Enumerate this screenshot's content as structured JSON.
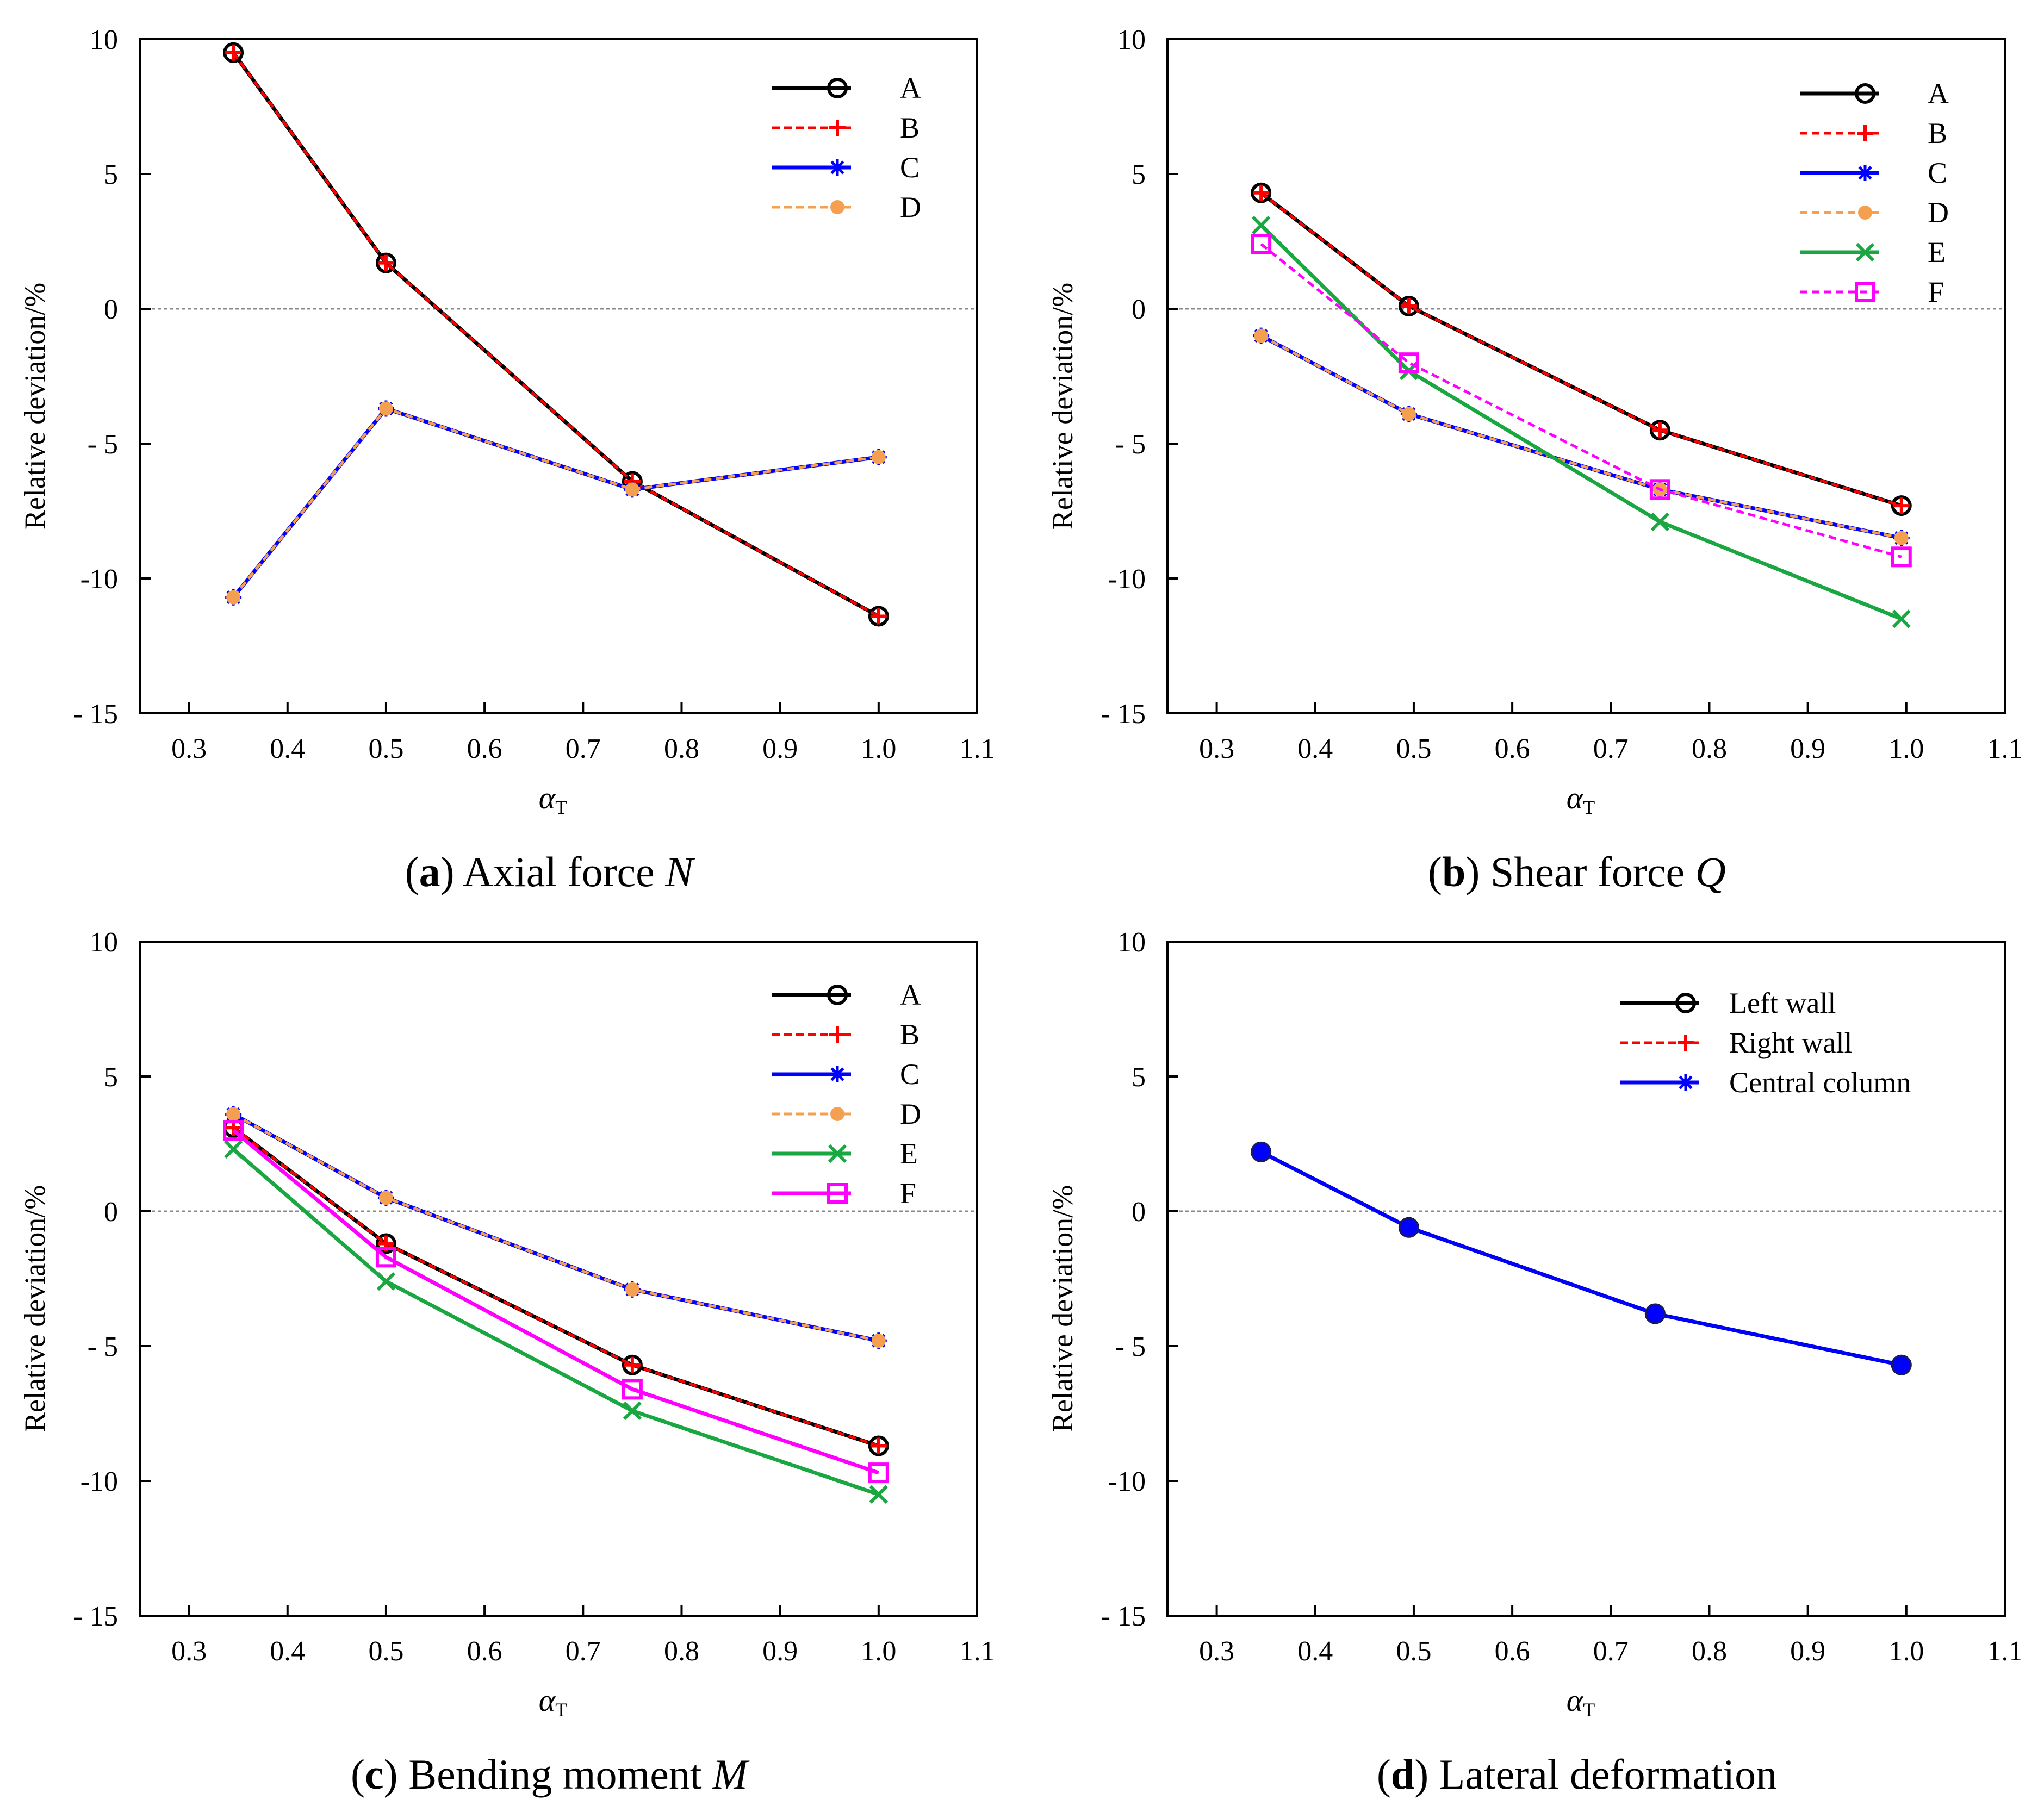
{
  "colors": {
    "A": "#000000",
    "B": "#ff0000",
    "C": "#0000ff",
    "D": "#f5a050",
    "E": "#1aa640",
    "F": "#ff00ff",
    "zero_line": "#8a8a8a"
  },
  "chart_data": [
    {
      "id": "a",
      "type": "line",
      "caption": {
        "letter": "a",
        "text": "Axial force",
        "symbol": "N"
      },
      "ylabel": "Relative deviation/%",
      "xlabel": {
        "symbol": "α",
        "subscript": "T"
      },
      "xlim": [
        0.25,
        1.1
      ],
      "ylim": [
        -15,
        10
      ],
      "xticks": [
        "0.3",
        "0.4",
        "0.5",
        "0.6",
        "0.7",
        "0.8",
        "0.9",
        "1.0",
        "1.1"
      ],
      "yticks": [
        "10",
        "5",
        "0",
        "- 5",
        "-10",
        "- 15"
      ],
      "zero_line": true,
      "legend_position": "top-right",
      "series": [
        {
          "name": "A",
          "x": [
            0.345,
            0.5,
            0.75,
            1.0
          ],
          "y": [
            9.5,
            1.7,
            -6.4,
            -11.4
          ],
          "marker": "circle",
          "dash": false,
          "color_key": "A"
        },
        {
          "name": "B",
          "x": [
            0.345,
            0.5,
            0.75,
            1.0
          ],
          "y": [
            9.5,
            1.7,
            -6.4,
            -11.4
          ],
          "marker": "plus",
          "dash": true,
          "color_key": "B"
        },
        {
          "name": "C",
          "x": [
            0.345,
            0.5,
            0.75,
            1.0
          ],
          "y": [
            -10.7,
            -3.7,
            -6.7,
            -5.5
          ],
          "marker": "asterisk",
          "dash": false,
          "color_key": "C"
        },
        {
          "name": "D",
          "x": [
            0.345,
            0.5,
            0.75,
            1.0
          ],
          "y": [
            -10.7,
            -3.7,
            -6.7,
            -5.5
          ],
          "marker": "dot",
          "dash": true,
          "color_key": "D"
        }
      ]
    },
    {
      "id": "b",
      "type": "line",
      "caption": {
        "letter": "b",
        "text": "Shear force",
        "symbol": "Q"
      },
      "ylabel": "Relative deviation/%",
      "xlabel": {
        "symbol": "α",
        "subscript": "T"
      },
      "xlim": [
        0.25,
        1.1
      ],
      "ylim": [
        -15,
        10
      ],
      "xticks": [
        "0.3",
        "0.4",
        "0.5",
        "0.6",
        "0.7",
        "0.8",
        "0.9",
        "1.0",
        "1.1"
      ],
      "yticks": [
        "10",
        "5",
        "0",
        "- 5",
        "-10",
        "- 15"
      ],
      "zero_line": true,
      "legend_position": "top-right",
      "series": [
        {
          "name": "A",
          "x": [
            0.345,
            0.495,
            0.75,
            0.995
          ],
          "y": [
            4.3,
            0.1,
            -4.5,
            -7.3
          ],
          "marker": "circle",
          "dash": false,
          "color_key": "A"
        },
        {
          "name": "B",
          "x": [
            0.345,
            0.495,
            0.75,
            0.995
          ],
          "y": [
            4.3,
            0.1,
            -4.5,
            -7.3
          ],
          "marker": "plus",
          "dash": true,
          "color_key": "B"
        },
        {
          "name": "C",
          "x": [
            0.345,
            0.495,
            0.75,
            0.995
          ],
          "y": [
            -1.0,
            -3.9,
            -6.7,
            -8.5
          ],
          "marker": "asterisk",
          "dash": false,
          "color_key": "C"
        },
        {
          "name": "D",
          "x": [
            0.345,
            0.495,
            0.75,
            0.995
          ],
          "y": [
            -1.0,
            -3.9,
            -6.7,
            -8.5
          ],
          "marker": "dot",
          "dash": true,
          "color_key": "D"
        },
        {
          "name": "E",
          "x": [
            0.345,
            0.495,
            0.75,
            0.995
          ],
          "y": [
            3.1,
            -2.3,
            -7.9,
            -11.5
          ],
          "marker": "cross",
          "dash": false,
          "color_key": "E"
        },
        {
          "name": "F",
          "x": [
            0.345,
            0.495,
            0.75,
            0.995
          ],
          "y": [
            2.4,
            -2.0,
            -6.7,
            -9.2
          ],
          "marker": "square",
          "dash": true,
          "color_key": "F"
        }
      ]
    },
    {
      "id": "c",
      "type": "line",
      "caption": {
        "letter": "c",
        "text": "Bending moment",
        "symbol": "M"
      },
      "ylabel": "Relative deviation/%",
      "xlabel": {
        "symbol": "α",
        "subscript": "T"
      },
      "xlim": [
        0.25,
        1.1
      ],
      "ylim": [
        -15,
        10
      ],
      "xticks": [
        "0.3",
        "0.4",
        "0.5",
        "0.6",
        "0.7",
        "0.8",
        "0.9",
        "1.0",
        "1.1"
      ],
      "yticks": [
        "10",
        "5",
        "0",
        "- 5",
        "-10",
        "- 15"
      ],
      "zero_line": true,
      "legend_position": "top-right",
      "series": [
        {
          "name": "A",
          "x": [
            0.345,
            0.5,
            0.75,
            1.0
          ],
          "y": [
            3.1,
            -1.2,
            -5.7,
            -8.7
          ],
          "marker": "circle",
          "dash": false,
          "color_key": "A"
        },
        {
          "name": "B",
          "x": [
            0.345,
            0.5,
            0.75,
            1.0
          ],
          "y": [
            3.1,
            -1.2,
            -5.7,
            -8.7
          ],
          "marker": "plus",
          "dash": true,
          "color_key": "B"
        },
        {
          "name": "C",
          "x": [
            0.345,
            0.5,
            0.75,
            1.0
          ],
          "y": [
            3.6,
            0.5,
            -2.9,
            -4.8
          ],
          "marker": "asterisk",
          "dash": false,
          "color_key": "C"
        },
        {
          "name": "D",
          "x": [
            0.345,
            0.5,
            0.75,
            1.0
          ],
          "y": [
            3.6,
            0.5,
            -2.9,
            -4.8
          ],
          "marker": "dot",
          "dash": true,
          "color_key": "D"
        },
        {
          "name": "E",
          "x": [
            0.345,
            0.5,
            0.75,
            1.0
          ],
          "y": [
            2.3,
            -2.6,
            -7.4,
            -10.5
          ],
          "marker": "cross",
          "dash": false,
          "color_key": "E"
        },
        {
          "name": "F",
          "x": [
            0.345,
            0.5,
            0.75,
            1.0
          ],
          "y": [
            3.0,
            -1.7,
            -6.6,
            -9.7
          ],
          "marker": "square",
          "dash": false,
          "color_key": "F"
        }
      ]
    },
    {
      "id": "d",
      "type": "line",
      "caption": {
        "letter": "d",
        "text": "Lateral deformation",
        "symbol": ""
      },
      "ylabel": "Relative deviation/%",
      "xlabel": {
        "symbol": "α",
        "subscript": "T"
      },
      "xlim": [
        0.25,
        1.1
      ],
      "ylim": [
        -15,
        10
      ],
      "xticks": [
        "0.3",
        "0.4",
        "0.5",
        "0.6",
        "0.7",
        "0.8",
        "0.9",
        "1.0",
        "1.1"
      ],
      "yticks": [
        "10",
        "5",
        "0",
        "- 5",
        "-10",
        "- 15"
      ],
      "zero_line": true,
      "legend_position": "top-right",
      "series": [
        {
          "name": "Left wall",
          "x": [
            0.345,
            0.495,
            0.745,
            0.995
          ],
          "y": [
            2.2,
            -0.6,
            -3.8,
            -5.7
          ],
          "marker": "circle",
          "dash": false,
          "color_key": "A"
        },
        {
          "name": "Right wall",
          "x": [
            0.345,
            0.495,
            0.745,
            0.995
          ],
          "y": [
            2.2,
            -0.6,
            -3.8,
            -5.7
          ],
          "marker": "plus",
          "dash": true,
          "color_key": "B"
        },
        {
          "name": "Central column",
          "x": [
            0.345,
            0.495,
            0.745,
            0.995
          ],
          "y": [
            2.2,
            -0.6,
            -3.8,
            -5.7
          ],
          "marker": "asterisk",
          "dash": false,
          "color_key": "C",
          "filled_dots": true
        }
      ]
    }
  ]
}
